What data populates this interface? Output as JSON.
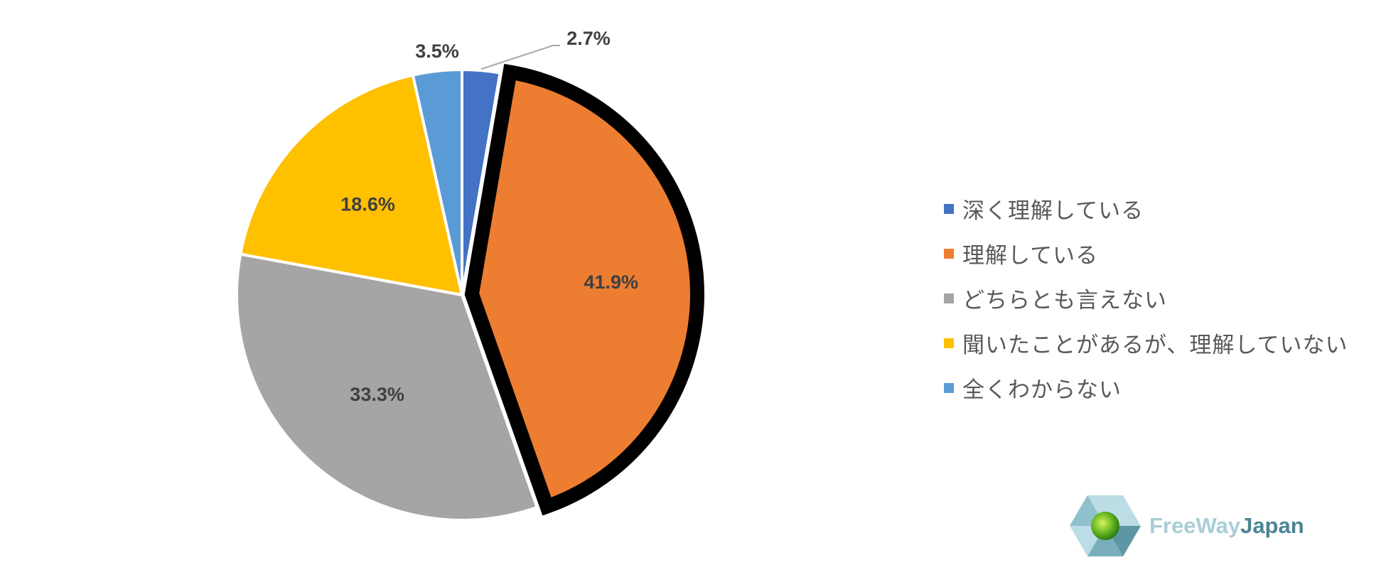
{
  "chart_data": {
    "type": "pie",
    "title": "",
    "start_angle_deg": 0,
    "direction": "clockwise",
    "highlighted_slice": "理解している",
    "legend_position": "right",
    "slices": [
      {
        "label": "深く理解している",
        "value": 2.7,
        "display": "2.7%",
        "color": "#4472C4"
      },
      {
        "label": "理解している",
        "value": 41.9,
        "display": "41.9%",
        "color": "#ED7D31"
      },
      {
        "label": "どちらとも言えない",
        "value": 33.3,
        "display": "33.3%",
        "color": "#A5A5A5"
      },
      {
        "label": "聞いたことがあるが、理解していない",
        "value": 18.6,
        "display": "18.6%",
        "color": "#FFC000"
      },
      {
        "label": "全くわからない",
        "value": 3.5,
        "display": "3.5%",
        "color": "#5B9BD5"
      }
    ]
  },
  "logo": {
    "part1": "FreeWay",
    "part2": "Japan"
  }
}
